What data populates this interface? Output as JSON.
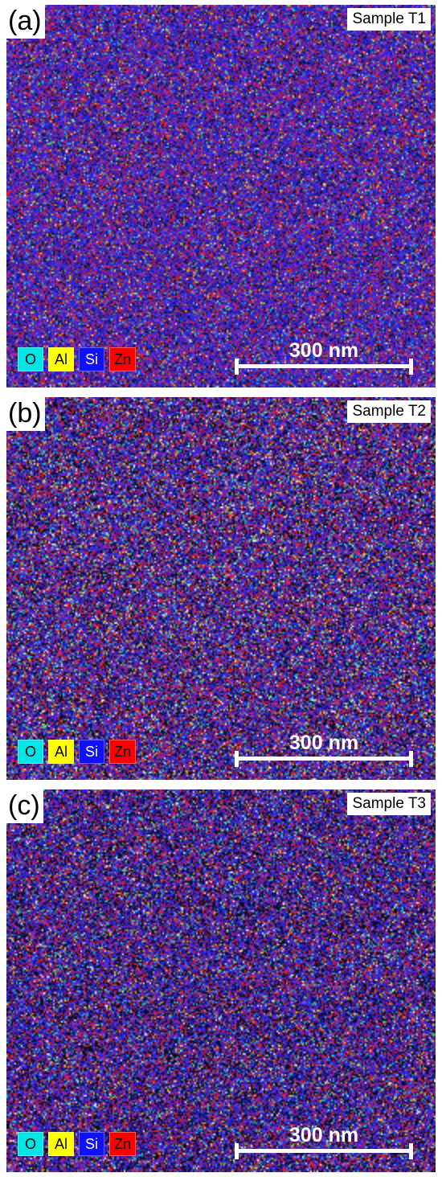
{
  "panels": [
    {
      "letter": "(a)",
      "sample": "Sample T1",
      "scale_bar": "300 nm",
      "legend": [
        {
          "label": "O",
          "color": "#00e5e5",
          "text_color": "#000000"
        },
        {
          "label": "Al",
          "color": "#ffff00",
          "text_color": "#000000"
        },
        {
          "label": "Si",
          "color": "#1010ff",
          "text_color": "#ffffff"
        },
        {
          "label": "Zn",
          "color": "#ff0000",
          "text_color": "#000000"
        }
      ]
    },
    {
      "letter": "(b)",
      "sample": "Sample T2",
      "scale_bar": "300 nm",
      "legend": [
        {
          "label": "O",
          "color": "#00e5e5",
          "text_color": "#000000"
        },
        {
          "label": "Al",
          "color": "#ffff00",
          "text_color": "#000000"
        },
        {
          "label": "Si",
          "color": "#1010ff",
          "text_color": "#ffffff"
        },
        {
          "label": "Zn",
          "color": "#ff0000",
          "text_color": "#000000"
        }
      ]
    },
    {
      "letter": "(c)",
      "sample": "Sample T3",
      "scale_bar": "300 nm",
      "legend": [
        {
          "label": "O",
          "color": "#00e5e5",
          "text_color": "#000000"
        },
        {
          "label": "Al",
          "color": "#ffff00",
          "text_color": "#000000"
        },
        {
          "label": "Si",
          "color": "#1010ff",
          "text_color": "#ffffff"
        },
        {
          "label": "Zn",
          "color": "#ff0000",
          "text_color": "#000000"
        }
      ]
    }
  ]
}
